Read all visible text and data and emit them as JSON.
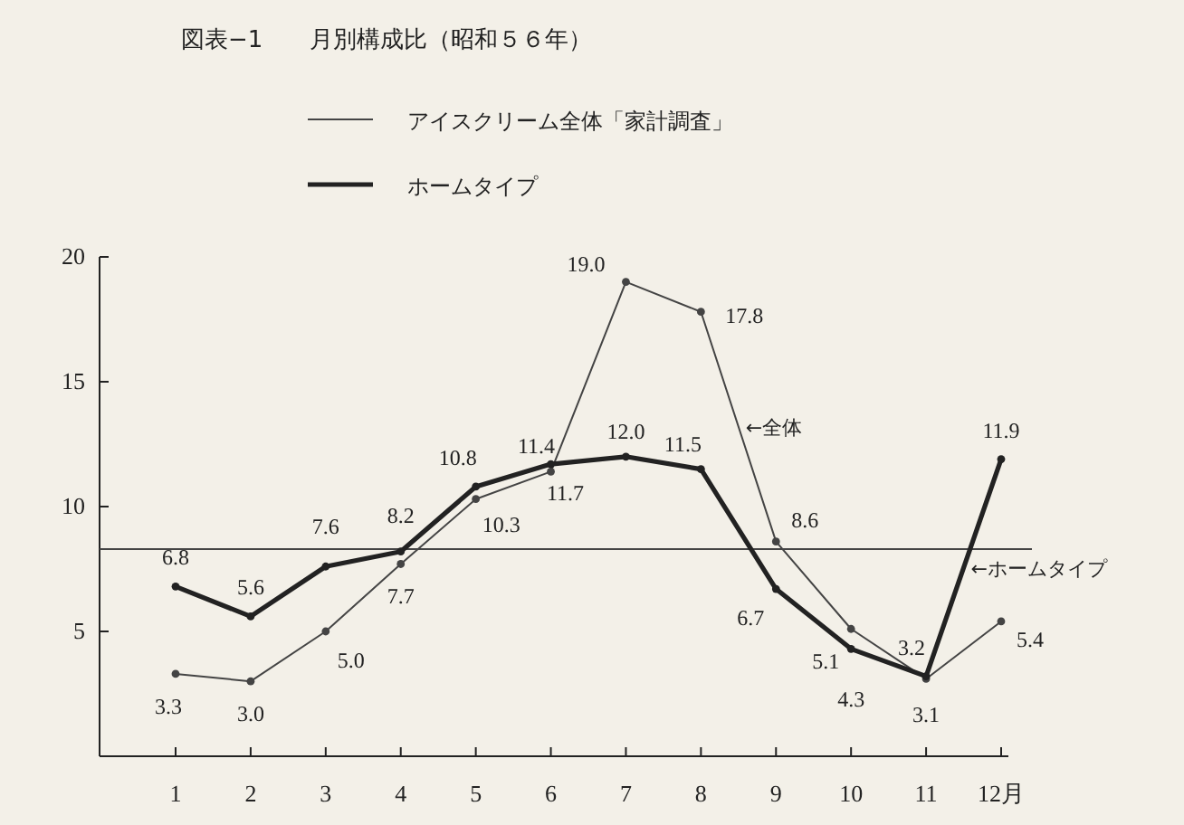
{
  "chart_data": {
    "type": "line",
    "title": "図表−1　　月別構成比（昭和５６年）",
    "categories": [
      "1",
      "2",
      "3",
      "4",
      "5",
      "6",
      "7",
      "8",
      "9",
      "10",
      "11",
      "12月"
    ],
    "series": [
      {
        "name": "アイスクリーム全体「家計調査」",
        "color": "#444444",
        "values": [
          3.3,
          3.0,
          5.0,
          7.7,
          10.3,
          11.4,
          19.0,
          17.8,
          8.6,
          5.1,
          3.1,
          5.4
        ],
        "value_labels": [
          "3.3",
          "3.0",
          "5.0",
          "7.7",
          "10.3",
          "11.4",
          "19.0",
          "17.8",
          "8.6",
          "5.1",
          "3.1",
          "5.4"
        ]
      },
      {
        "name": "ホームタイプ",
        "color": "#222222",
        "values": [
          6.8,
          5.6,
          7.6,
          8.2,
          10.8,
          11.7,
          12.0,
          11.5,
          6.7,
          4.3,
          3.2,
          11.9
        ],
        "value_labels": [
          "6.8",
          "5.6",
          "7.6",
          "8.2",
          "10.8",
          "11.7",
          "12.0",
          "11.5",
          "6.7",
          "4.3",
          "3.2",
          "11.9"
        ]
      }
    ],
    "ylim": [
      0,
      20
    ],
    "yticks": [
      5,
      10,
      15,
      20
    ],
    "ref_lines": [
      {
        "axis": "y",
        "value": 8.3,
        "color": "#444444"
      }
    ],
    "annotations": [
      "←全体",
      "←ホームタイプ"
    ],
    "marker": "circle",
    "legend": "top",
    "grid": false
  }
}
